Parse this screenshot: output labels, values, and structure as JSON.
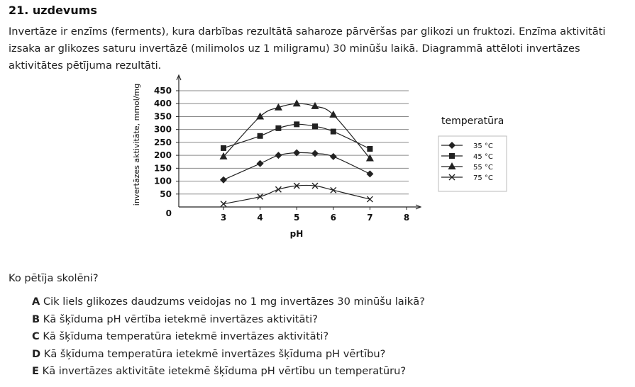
{
  "task": {
    "title": "21. uzdevums",
    "intro": "Invertāze ir enzīms (ferments), kura darbības rezultātā saharoze pārvēršas par glikozi un fruktozi. Enzīma aktivitāti izsaka ar glikozes saturu invertāzē (milimolos uz 1 miligramu) 30 minūšu laikā. Diagrammā attēloti invertāzes aktivitātes pētījuma rezultāti."
  },
  "question": {
    "text": "Ko pētīja skolēni?",
    "options": [
      {
        "letter": "A",
        "text": "Cik liels glikozes daudzums veidojas no 1 mg invertāzes 30 minūšu laikā?"
      },
      {
        "letter": "B",
        "text": "Kā šķīduma pH vērtība ietekmē invertāzes aktivitāti?"
      },
      {
        "letter": "C",
        "text": "Kā šķīduma temperatūra ietekmē invertāzes aktivitāti?"
      },
      {
        "letter": "D",
        "text": "Kā šķīduma temperatūra ietekmē invertāzes šķīduma pH vērtību?"
      },
      {
        "letter": "E",
        "text": "Kā invertāzes aktivitāte ietekmē šķīduma pH vērtību un temperatūru?"
      }
    ]
  },
  "chart_data": {
    "type": "line",
    "xlabel": "pH",
    "ylabel": "invertāzes aktivitāte, mmol/mg",
    "x_ticks": [
      3,
      4,
      5,
      6,
      7,
      8
    ],
    "y_ticks": [
      50,
      100,
      150,
      200,
      250,
      300,
      350,
      400,
      450
    ],
    "origin_label": "0",
    "xlim": [
      2.2,
      8.4
    ],
    "ylim": [
      0,
      470
    ],
    "grid": true,
    "legend_title": "temperatūra",
    "legend_position": "right",
    "series": [
      {
        "name": "35 °C",
        "marker": "diamond",
        "x": [
          3,
          4,
          4.5,
          5,
          5.5,
          6,
          7
        ],
        "y": [
          105,
          168,
          200,
          210,
          207,
          195,
          128
        ]
      },
      {
        "name": "45 °C",
        "marker": "square",
        "x": [
          3,
          4,
          4.5,
          5,
          5.5,
          6,
          7
        ],
        "y": [
          228,
          275,
          305,
          320,
          312,
          292,
          225
        ]
      },
      {
        "name": "55 °C",
        "marker": "triangle",
        "x": [
          3,
          4,
          4.5,
          5,
          5.5,
          6,
          7
        ],
        "y": [
          195,
          350,
          385,
          400,
          390,
          357,
          188
        ]
      },
      {
        "name": "75 °C",
        "marker": "cross",
        "x": [
          3,
          4,
          4.5,
          5,
          5.5,
          6,
          7
        ],
        "y": [
          12,
          40,
          68,
          82,
          82,
          65,
          30
        ]
      }
    ]
  }
}
